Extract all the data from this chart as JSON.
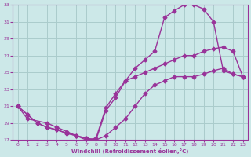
{
  "xlabel": "Windchill (Refroidissement éolien,°C)",
  "bg_color": "#cce8e8",
  "grid_color": "#aacccc",
  "line_color": "#993399",
  "xlim": [
    -0.5,
    23.5
  ],
  "ylim": [
    17,
    33
  ],
  "xticks": [
    0,
    1,
    2,
    3,
    4,
    5,
    6,
    7,
    8,
    9,
    10,
    11,
    12,
    13,
    14,
    15,
    16,
    17,
    18,
    19,
    20,
    21,
    22,
    23
  ],
  "yticks": [
    17,
    19,
    21,
    23,
    25,
    27,
    29,
    31,
    33
  ],
  "curve1_x": [
    0,
    1,
    2,
    3,
    4,
    5,
    6,
    7,
    8,
    9,
    10,
    11,
    12,
    13,
    14,
    15,
    16,
    17,
    18,
    19,
    20,
    21,
    22,
    23
  ],
  "curve1_y": [
    21,
    20,
    19,
    18.5,
    18.2,
    17.8,
    17.5,
    17.2,
    17.0,
    20.5,
    22,
    24,
    25.5,
    26.5,
    27.5,
    31.5,
    32.3,
    33.0,
    33.0,
    32.5,
    31.0,
    25.2,
    24.8,
    24.5
  ],
  "curve2_x": [
    0,
    1,
    2,
    3,
    4,
    5,
    6,
    7,
    8,
    9,
    10,
    11,
    12,
    13,
    14,
    15,
    16,
    17,
    18,
    19,
    20,
    21,
    22,
    23
  ],
  "curve2_y": [
    21,
    20,
    19,
    18.5,
    18.2,
    17.8,
    17.5,
    17.2,
    17.0,
    17.5,
    18.5,
    19.5,
    21.0,
    22.5,
    23.5,
    24.0,
    24.5,
    24.5,
    24.5,
    24.8,
    25.2,
    25.5,
    24.8,
    24.5
  ],
  "curve3_x": [
    0,
    1,
    3,
    4,
    5,
    6,
    7,
    8,
    9,
    10,
    11,
    12,
    13,
    14,
    15,
    16,
    17,
    18,
    19,
    20,
    21,
    22,
    23
  ],
  "curve3_y": [
    21,
    19.5,
    19.0,
    18.5,
    18.0,
    17.5,
    17.0,
    17.2,
    20.8,
    22.5,
    24.0,
    24.5,
    25.0,
    25.5,
    26.0,
    26.5,
    27.0,
    27.0,
    27.5,
    27.8,
    28.0,
    27.5,
    24.5
  ],
  "marker": "D",
  "marker_size": 2.5,
  "line_width": 1.0
}
